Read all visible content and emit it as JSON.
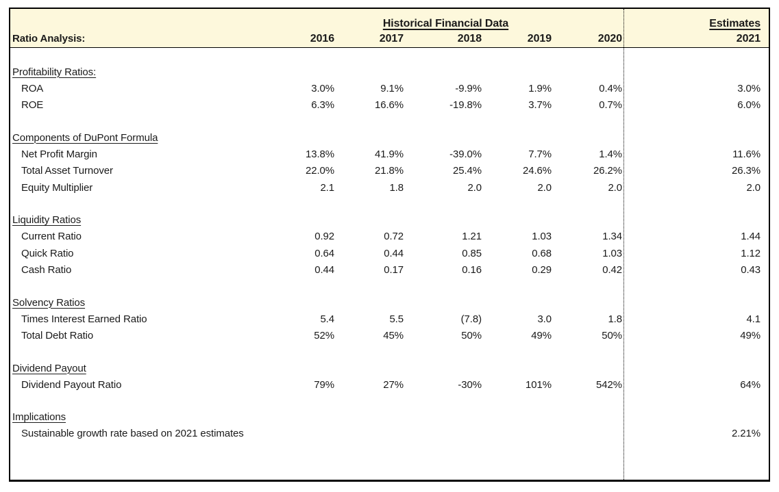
{
  "colors": {
    "header_fill": "#FDF8DC",
    "border": "#000000",
    "text": "#1a1a1a"
  },
  "header": {
    "group_title": "Historical Financial Data",
    "estimates_title": "Estimates",
    "left_label": "Ratio Analysis:",
    "years": [
      "2016",
      "2017",
      "2018",
      "2019",
      "2020"
    ],
    "estimate_year": "2021"
  },
  "sections": [
    {
      "title": "Profitability Ratios:",
      "rows": [
        {
          "label": "ROA",
          "values": [
            "3.0%",
            "9.1%",
            "-9.9%",
            "1.9%",
            "0.4%"
          ],
          "estimate": "3.0%"
        },
        {
          "label": "ROE",
          "values": [
            "6.3%",
            "16.6%",
            "-19.8%",
            "3.7%",
            "0.7%"
          ],
          "estimate": "6.0%"
        }
      ]
    },
    {
      "title": "Components of DuPont Formula",
      "rows": [
        {
          "label": "Net Profit Margin",
          "values": [
            "13.8%",
            "41.9%",
            "-39.0%",
            "7.7%",
            "1.4%"
          ],
          "estimate": "11.6%"
        },
        {
          "label": "Total Asset Turnover",
          "values": [
            "22.0%",
            "21.8%",
            "25.4%",
            "24.6%",
            "26.2%"
          ],
          "estimate": "26.3%"
        },
        {
          "label": "Equity Multiplier",
          "values": [
            "2.1",
            "1.8",
            "2.0",
            "2.0",
            "2.0"
          ],
          "estimate": "2.0"
        }
      ]
    },
    {
      "title": "Liquidity Ratios",
      "rows": [
        {
          "label": "Current Ratio",
          "values": [
            "0.92",
            "0.72",
            "1.21",
            "1.03",
            "1.34"
          ],
          "estimate": "1.44"
        },
        {
          "label": "Quick Ratio",
          "values": [
            "0.64",
            "0.44",
            "0.85",
            "0.68",
            "1.03"
          ],
          "estimate": "1.12"
        },
        {
          "label": "Cash Ratio",
          "values": [
            "0.44",
            "0.17",
            "0.16",
            "0.29",
            "0.42"
          ],
          "estimate": "0.43"
        }
      ]
    },
    {
      "title": "Solvency Ratios",
      "rows": [
        {
          "label": "Times Interest Earned Ratio",
          "values": [
            "5.4",
            "5.5",
            "(7.8)",
            "3.0",
            "1.8"
          ],
          "estimate": "4.1"
        },
        {
          "label": "Total Debt Ratio",
          "values": [
            "52%",
            "45%",
            "50%",
            "49%",
            "50%"
          ],
          "estimate": "49%"
        }
      ]
    },
    {
      "title": "Dividend Payout",
      "rows": [
        {
          "label": "Dividend Payout Ratio",
          "values": [
            "79%",
            "27%",
            "-30%",
            "101%",
            "542%"
          ],
          "estimate": "64%"
        }
      ]
    },
    {
      "title": "Implications",
      "rows": [
        {
          "label": "Sustainable growth rate based on 2021 estimates",
          "values": [
            "",
            "",
            "",
            "",
            ""
          ],
          "estimate": "2.21%"
        }
      ]
    }
  ]
}
